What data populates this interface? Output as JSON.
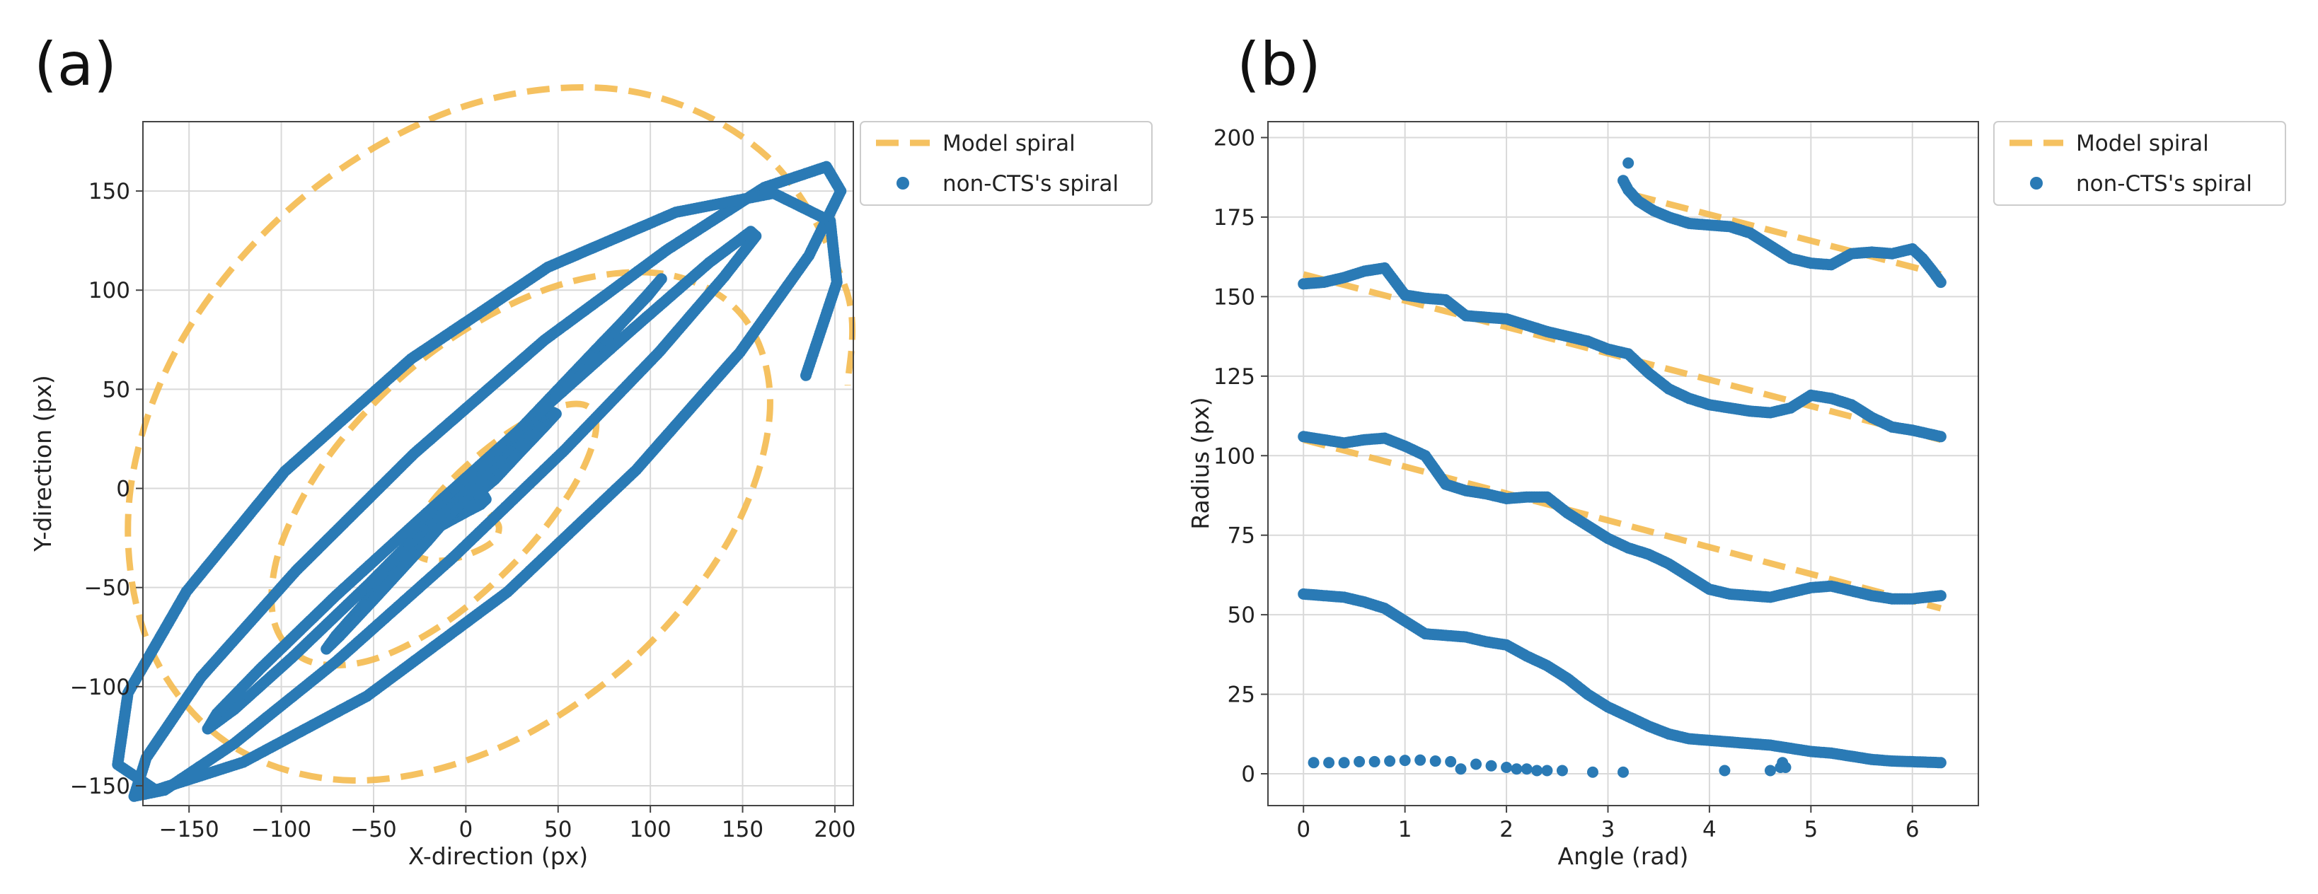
{
  "figure": {
    "panel_a_label": "(a)",
    "panel_b_label": "(b)"
  },
  "colors": {
    "model": "#f4b84a",
    "data": "#2a7ab5"
  },
  "chart_data": [
    {
      "type": "scatter",
      "panel": "(a)",
      "xlabel": "X-direction (px)",
      "ylabel": "Y-direction (px)",
      "xlim": [
        -175,
        210
      ],
      "ylim": [
        -160,
        185
      ],
      "xticks": [
        -150,
        -100,
        -50,
        0,
        50,
        100,
        150,
        200
      ],
      "yticks": [
        -150,
        -100,
        -50,
        0,
        50,
        100,
        150
      ],
      "xtick_labels": [
        "−150",
        "−100",
        "−50",
        "0",
        "50",
        "100",
        "150",
        "200"
      ],
      "ytick_labels": [
        "−150",
        "−100",
        "−50",
        "0",
        "50",
        "100",
        "150"
      ],
      "grid": true,
      "legend_position": "outside-top-right",
      "series": [
        {
          "name": "Model spiral",
          "style": "dashed-line",
          "x": [
            0.0,
            7.9,
            14.2,
            18.0,
            14.1,
            0.0,
            -14.5,
            -25.7,
            -28.0,
            -19.8,
            0.0,
            25.7,
            50.3,
            67.0,
            69.9,
            56.5,
            28.0,
            -11.1,
            -52.9,
            -87.0,
            -104.5,
            -98.9,
            -68.0,
            -15.7,
            47.9,
            108.6,
            151.4,
            164.7,
            143.1,
            90.0,
            16.1,
            -62.4,
            -130.2,
            -173.3,
            -181.7,
            -151.4,
            -86.1,
            0.0,
            89.2,
            163.4,
            206.0,
            207.0
          ],
          "y": [
            -0.6,
            -7.9,
            -14.2,
            -20.0,
            -27.2,
            -33.8,
            -36.5,
            -33.9,
            -24.4,
            -8.4,
            11.2,
            29.8,
            41.2,
            40.8,
            26.1,
            -1.9,
            -36.0,
            -67.7,
            -87.0,
            -86.4,
            -64.7,
            -25.2,
            23.9,
            70.5,
            101.8,
            108.0,
            85.3,
            37.4,
            -25.2,
            -86.8,
            -131.6,
            -147.3,
            -127.7,
            -75.1,
            0.0,
            78.9,
            148.5,
            193.0,
            200.4,
            167.3,
            100.5,
            52.0
          ]
        },
        {
          "name": "non-CTS's spiral",
          "style": "scatter",
          "x": [
            0.0,
            3.5,
            7.3,
            10.1,
            10.9,
            8.0,
            0.3,
            -8.0,
            -14.8,
            -18.8,
            -17.2,
            -11.0,
            0.4,
            15.7,
            30.3,
            42.2,
            48.9,
            47.5,
            38.1,
            19.9,
            -3.6,
            -30.2,
            -54.5,
            -70.4,
            -75.6,
            -68.4,
            -49.1,
            -20.9,
            12.3,
            47.7,
            79.0,
            99.1,
            106.0,
            98.5,
            74.7,
            38.0,
            -5.9,
            -52.3,
            -94.5,
            -125.4,
            -139.9,
            -134.9,
            -111.2,
            -70.3,
            -18.7,
            37.6,
            90.9,
            131.9,
            154.4,
            157.2,
            140.0,
            104.9,
            53.4,
            -7.1,
            -70.1,
            -125.7,
            -163.3,
            -179.8,
            -173.2,
            -143.6,
            -92.1,
            -28.1,
            42.6,
            109.1,
            161.7,
            195.4,
            203.2,
            185.9,
            148.6,
            92.3,
            22.6,
            -53.6,
            -120.6,
            -168.1,
            -188.7,
            -183.1,
            -151.4,
            -98.1,
            -29.6,
            44.5,
            113.8,
            166.8,
            197.5,
            201.1,
            184.3
          ],
          "y": [
            -0.5,
            -3.7,
            -4.1,
            -4.2,
            -5.5,
            -8.1,
            -11.8,
            -16.0,
            -19.5,
            -21.6,
            -20.8,
            -15.6,
            -7.3,
            4.6,
            19.2,
            30.8,
            37.6,
            38.3,
            30.6,
            14.8,
            -8.3,
            -33.6,
            -57.6,
            -74.3,
            -81.0,
            -74.5,
            -55.3,
            -26.7,
            9.1,
            45.6,
            77.8,
            98.4,
            105.7,
            97.0,
            74.1,
            38.2,
            -4.5,
            -48.0,
            -85.6,
            -111.4,
            -121.3,
            -113.5,
            -90.8,
            -54.0,
            -10.3,
            36.6,
            80.7,
            113.9,
            129.6,
            127.3,
            106.8,
            68.9,
            19.2,
            -35.0,
            -87.2,
            -128.8,
            -152.2,
            -155.3,
            -135.9,
            -95.3,
            -41.6,
            17.5,
            74.8,
            120.4,
            151.8,
            162.3,
            150.0,
            117.4,
            68.7,
            9.3,
            -52.2,
            -104.8,
            -138.1,
            -152.2,
            -139.3,
            -103.2,
            -52.0,
            8.6,
            65.4,
            111.6,
            139.3,
            148.9,
            134.8,
            104.0,
            57.0
          ]
        }
      ]
    },
    {
      "type": "scatter",
      "panel": "(b)",
      "xlabel": "Angle (rad)",
      "ylabel": "Radius (px)",
      "xlim": [
        -0.35,
        6.65
      ],
      "ylim": [
        -10,
        205
      ],
      "xticks": [
        0,
        1,
        2,
        3,
        4,
        5,
        6
      ],
      "yticks": [
        0,
        25,
        50,
        75,
        100,
        125,
        150,
        175,
        200
      ],
      "xtick_labels": [
        "0",
        "1",
        "2",
        "3",
        "4",
        "5",
        "6"
      ],
      "ytick_labels": [
        "0",
        "25",
        "50",
        "75",
        "100",
        "125",
        "150",
        "175",
        "200"
      ],
      "grid": true,
      "legend_position": "outside-top-right",
      "series": [
        {
          "name": "Model spiral",
          "style": "dashed-line",
          "segments": [
            {
              "x": [
                0.0,
                6.28
              ],
              "y": [
                105.0,
                52.0
              ]
            },
            {
              "x": [
                0.0,
                6.28
              ],
              "y": [
                157.0,
                105.0
              ]
            },
            {
              "x": [
                3.25,
                6.28
              ],
              "y": [
                182.0,
                157.0
              ]
            }
          ]
        },
        {
          "name": "non-CTS's spiral",
          "style": "scatter",
          "tracks": [
            {
              "x": [
                0.0,
                0.2,
                0.4,
                0.6,
                0.8,
                1.0,
                1.2,
                1.4,
                1.6,
                1.8,
                2.0,
                2.2,
                2.4,
                2.6,
                2.8,
                3.0,
                3.2,
                3.4,
                3.6,
                3.8,
                4.0,
                4.2,
                4.4,
                4.6,
                4.8,
                5.0,
                5.2,
                5.4,
                5.6,
                5.8,
                6.0,
                6.28
              ],
              "y": [
                56.5,
                56.0,
                55.5,
                54.0,
                52.0,
                48.0,
                44.0,
                43.5,
                43.0,
                41.5,
                40.5,
                37.0,
                34.0,
                30.0,
                25.0,
                21.0,
                18.0,
                15.0,
                12.5,
                11.0,
                10.5,
                10.0,
                9.5,
                9.0,
                8.0,
                7.0,
                6.5,
                5.5,
                4.5,
                4.0,
                3.8,
                3.5
              ]
            },
            {
              "x": [
                0.0,
                0.2,
                0.4,
                0.6,
                0.8,
                1.0,
                1.2,
                1.4,
                1.6,
                1.8,
                2.0,
                2.2,
                2.4,
                2.6,
                2.8,
                3.0,
                3.2,
                3.4,
                3.6,
                3.8,
                4.0,
                4.2,
                4.4,
                4.6,
                4.8,
                5.0,
                5.2,
                5.4,
                5.6,
                5.8,
                6.0,
                6.28
              ],
              "y": [
                106.0,
                105.0,
                104.0,
                105.0,
                105.5,
                103.0,
                100.0,
                91.0,
                89.0,
                88.0,
                86.5,
                87.0,
                87.0,
                82.0,
                78.0,
                74.0,
                71.0,
                69.0,
                66.0,
                62.0,
                58.0,
                56.5,
                56.0,
                55.5,
                57.0,
                58.5,
                59.0,
                57.5,
                56.0,
                55.0,
                55.0,
                56.0
              ]
            },
            {
              "x": [
                0.0,
                0.2,
                0.4,
                0.6,
                0.8,
                1.0,
                1.2,
                1.4,
                1.6,
                1.8,
                2.0,
                2.2,
                2.4,
                2.6,
                2.8,
                3.0,
                3.2,
                3.4,
                3.6,
                3.8,
                4.0,
                4.2,
                4.4,
                4.6,
                4.8,
                5.0,
                5.2,
                5.4,
                5.6,
                5.8,
                6.0,
                6.28
              ],
              "y": [
                154.0,
                154.5,
                156.0,
                158.0,
                159.0,
                150.5,
                149.5,
                149.0,
                144.0,
                143.5,
                143.0,
                141.0,
                139.0,
                137.5,
                136.0,
                133.5,
                132.0,
                126.0,
                121.0,
                118.0,
                116.0,
                115.0,
                114.0,
                113.5,
                115.0,
                119.0,
                118.0,
                116.0,
                112.0,
                109.0,
                108.0,
                106.0
              ]
            },
            {
              "x": [
                3.15,
                3.2,
                3.3,
                3.45,
                3.6,
                3.8,
                4.0,
                4.2,
                4.4,
                4.6,
                4.8,
                5.0,
                5.2,
                5.4,
                5.6,
                5.8,
                6.0,
                6.1,
                6.2,
                6.28
              ],
              "y": [
                186.5,
                183.5,
                180.0,
                177.0,
                175.0,
                173.0,
                172.5,
                172.0,
                170.0,
                166.0,
                162.0,
                160.5,
                160.0,
                163.5,
                164.0,
                163.5,
                165.0,
                162.0,
                158.0,
                154.5
              ]
            },
            {
              "x": [
                3.2
              ],
              "y": [
                192.0
              ]
            },
            {
              "x": [
                0.1,
                0.25,
                0.4,
                0.55,
                0.7,
                0.85,
                1.0,
                1.15,
                1.3,
                1.45,
                1.55,
                1.7,
                1.85,
                2.0,
                2.1,
                2.2,
                2.3,
                2.4,
                2.55,
                2.85,
                3.15,
                4.15,
                4.6,
                4.7,
                4.72,
                4.75
              ],
              "y": [
                3.5,
                3.5,
                3.5,
                3.8,
                3.8,
                4.0,
                4.2,
                4.3,
                4.0,
                3.8,
                1.5,
                3.0,
                2.5,
                2.0,
                1.5,
                1.5,
                1.0,
                1.0,
                1.0,
                0.5,
                0.5,
                1.0,
                1.0,
                2.0,
                3.5,
                2.0
              ]
            }
          ]
        }
      ]
    }
  ]
}
